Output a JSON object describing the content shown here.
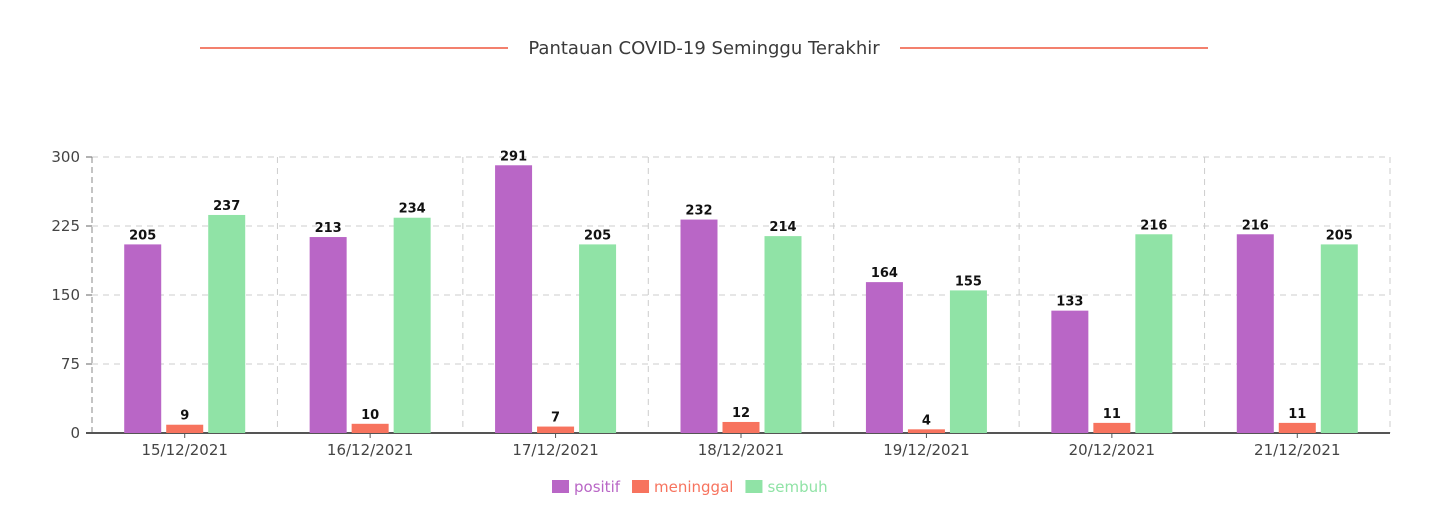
{
  "header": {
    "title": "Pantauan COVID-19 Seminggu Terakhir",
    "accent_color": "#f3806d"
  },
  "chart_data": {
    "type": "bar",
    "title": "Pantauan COVID-19 Seminggu Terakhir",
    "xlabel": "",
    "ylabel": "",
    "ylim": [
      0,
      300
    ],
    "yticks": [
      0,
      75,
      150,
      225,
      300
    ],
    "grid": true,
    "legend_position": "bottom-center",
    "categories": [
      "15/12/2021",
      "16/12/2021",
      "17/12/2021",
      "18/12/2021",
      "19/12/2021",
      "20/12/2021",
      "21/12/2021"
    ],
    "series": [
      {
        "name": "positif",
        "color": "#b966c6",
        "values": [
          205,
          213,
          291,
          232,
          164,
          133,
          216
        ]
      },
      {
        "name": "meninggal",
        "color": "#f7735e",
        "values": [
          9,
          10,
          7,
          12,
          4,
          11,
          11
        ]
      },
      {
        "name": "sembuh",
        "color": "#90e3a6",
        "values": [
          237,
          234,
          205,
          214,
          155,
          216,
          205
        ]
      }
    ]
  }
}
